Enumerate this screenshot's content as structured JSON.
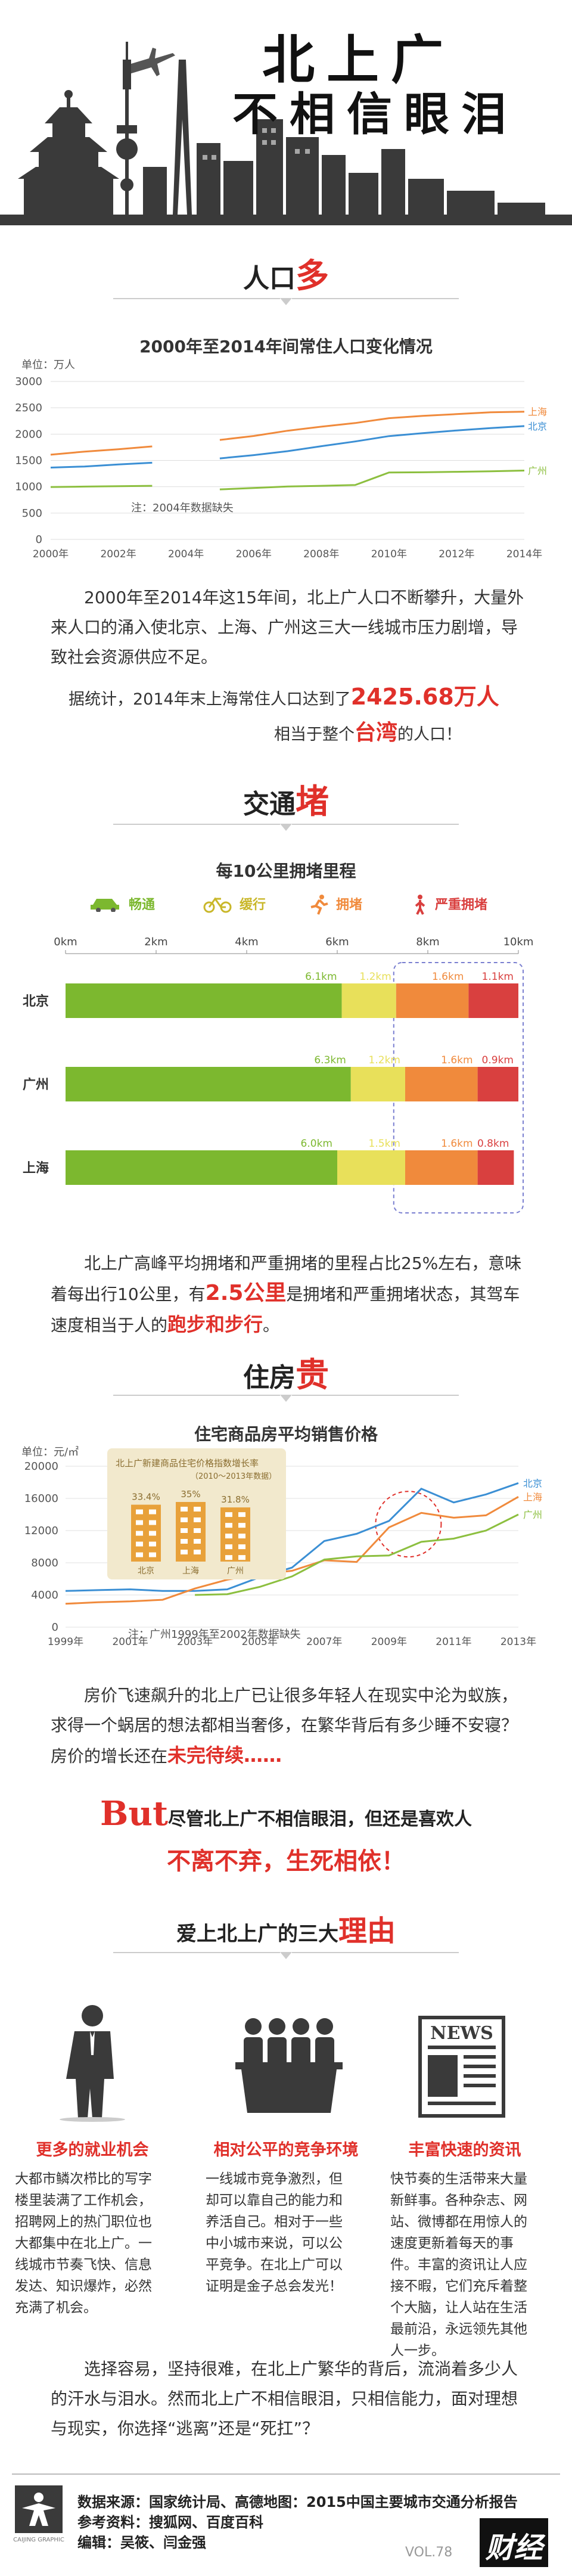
{
  "header": {
    "title_line1": "北上广",
    "title_line2": "不相信眼泪"
  },
  "population": {
    "section_prefix": "人口",
    "section_highlight": "多",
    "chart_title": "2000年至2014年间常住人口变化情况",
    "unit_label": "单位：万人",
    "note": "注：2004年数据缺失",
    "paragraph1": "2000年至2014年这15年间，北上广人口不断攀升，大量外来人口的涌入使北京、上海、广州这三大一线城市压力剧增，导致社会资源供应不足。",
    "para2_prefix": "据统计，2014年末上海常住人口达到了",
    "para2_number": "2425.68万人",
    "para3_prefix": "相当于整个",
    "para3_highlight": "台湾",
    "para3_suffix": "的人口！"
  },
  "traffic": {
    "section_prefix": "交通",
    "section_highlight": "堵",
    "chart_title": "每10公里拥堵里程",
    "legend": [
      {
        "label": "畅通",
        "color": "#7cb82f",
        "icon": "car-icon"
      },
      {
        "label": "缓行",
        "color": "#d6c92a",
        "icon": "bicycle-icon"
      },
      {
        "label": "拥堵",
        "color": "#f08a3c",
        "icon": "running-icon"
      },
      {
        "label": "严重拥堵",
        "color": "#d9403f",
        "icon": "walking-icon"
      }
    ],
    "paragraph_prefix": "北上广高峰平均拥堵和严重拥堵的里程占比25%左右，意味着每出行10公里，有",
    "paragraph_number": "2.5公里",
    "paragraph_mid": "是拥堵和严重拥堵状态，其驾车速度相当于人的",
    "paragraph_highlight": "跑步和步行",
    "paragraph_end": "。"
  },
  "housing": {
    "section_prefix": "住房",
    "section_highlight": "贵",
    "chart_title": "住宅商品房平均销售价格",
    "unit_label": "单位：元/㎡",
    "inset_title": "北上广新建商品住宅价格指数增长率",
    "inset_subtitle": "（2010～2013年数据）",
    "inset_values": [
      "33.4%",
      "35%",
      "31.8%"
    ],
    "inset_labels": [
      "北京",
      "上海",
      "广州"
    ],
    "note": "注：广州1999年至2002年数据缺失",
    "paragraph_prefix": "房价飞速飙升的北上广已让很多年轻人在现实中沦为蚁族，求得一个蜗居的想法都相当奢侈，在繁华背后有多少睡不安寝？房价的增长还在",
    "paragraph_highlight": "未完待续……"
  },
  "but": {
    "big": "But",
    "line1": "尽管北上广不相信眼泪，但还是喜欢人",
    "line2": "不离不弃，生死相依！"
  },
  "reasons": {
    "section_prefix": "爱上北上广的三大",
    "section_highlight": "理由",
    "items": [
      {
        "title": "更多的就业机会",
        "text": "大都市鳞次栉比的写字楼里装满了工作机会，招聘网上的热门职位也大都集中在北上广。一线城市节奏飞快、信息发达、知识爆炸，必然充满了机会。",
        "icon": "businessman-icon"
      },
      {
        "title": "相对公平的竞争环境",
        "text": "一线城市竞争激烈，但却可以靠自己的能力和养活自己。相对于一些中小城市来说，可以公平竞争。在北上广可以证明是金子总会发光！",
        "icon": "meeting-icon"
      },
      {
        "title": "丰富快速的资讯",
        "text": "快节奏的生活带来大量新鲜事。各种杂志、网站、微博都在用惊人的速度更新着每天的事件。丰富的资讯让人应接不暇，它们充斥着整个大脑，让人站在生活最前沿，永远领先其他人一步。",
        "icon": "newspaper-icon"
      }
    ],
    "news_label": "NEWS"
  },
  "closing": {
    "paragraph": "选择容易，坚持很难，在北上广繁华的背后，流淌着多少人的汗水与泪水。然而北上广不相信眼泪，只相信能力，面对理想与现实，你选择“逃离”还是“死扛”？"
  },
  "footer": {
    "source": "数据来源：国家统计局、高德地图：2015中国主要城市交通分析报告",
    "reference": "参考资料：搜狐网、百度百科",
    "editor": "编辑：吴筱、闫金强",
    "brand": "财经",
    "vol": "VOL.78",
    "logo_caption": "CAIJING GRAPHIC"
  },
  "chart_data": [
    {
      "type": "line",
      "title": "2000年至2014年间常住人口变化情况",
      "ylabel": "单位：万人",
      "x": [
        2000,
        2001,
        2002,
        2003,
        2004,
        2005,
        2006,
        2007,
        2008,
        2009,
        2010,
        2011,
        2012,
        2013,
        2014
      ],
      "x_ticks": [
        "2000年",
        "2002年",
        "2004年",
        "2006年",
        "2008年",
        "2010年",
        "2012年",
        "2014年"
      ],
      "ylim": [
        0,
        3000
      ],
      "y_ticks": [
        0,
        500,
        1000,
        1500,
        2000,
        2500,
        3000
      ],
      "series": [
        {
          "name": "上海",
          "color": "#f08a3c",
          "values": [
            1609,
            1668,
            1713,
            1766,
            null,
            1890,
            1964,
            2064,
            2141,
            2210,
            2303,
            2347,
            2380,
            2415,
            2426
          ]
        },
        {
          "name": "北京",
          "color": "#3b8fd4",
          "values": [
            1364,
            1385,
            1423,
            1456,
            null,
            1538,
            1601,
            1676,
            1771,
            1860,
            1962,
            2019,
            2069,
            2115,
            2152
          ]
        },
        {
          "name": "广州",
          "color": "#8cbf3f",
          "values": [
            995,
            1003,
            1010,
            1018,
            null,
            950,
            976,
            1004,
            1018,
            1033,
            1271,
            1275,
            1284,
            1293,
            1308
          ]
        }
      ]
    },
    {
      "type": "bar",
      "stacked": true,
      "orientation": "horizontal",
      "title": "每10公里拥堵里程",
      "x_ticks": [
        "0km",
        "2km",
        "4km",
        "6km",
        "8km",
        "10km"
      ],
      "xlim": [
        0,
        10
      ],
      "categories": [
        "北京",
        "广州",
        "上海"
      ],
      "series": [
        {
          "name": "畅通",
          "color": "#7cb82f",
          "values": [
            6.1,
            6.3,
            6.0
          ],
          "labels": [
            "6.1km",
            "6.3km",
            "6.0km"
          ]
        },
        {
          "name": "缓行",
          "color": "#e8e05a",
          "values": [
            1.2,
            1.2,
            1.5
          ],
          "labels": [
            "1.2km",
            "1.2km",
            "1.5km"
          ]
        },
        {
          "name": "拥堵",
          "color": "#f08a3c",
          "values": [
            1.6,
            1.6,
            1.6
          ],
          "labels": [
            "1.6km",
            "1.6km",
            "1.6km"
          ]
        },
        {
          "name": "严重拥堵",
          "color": "#d9403f",
          "values": [
            1.1,
            0.9,
            0.8
          ],
          "labels": [
            "1.1km",
            "0.9km",
            "0.8km"
          ]
        }
      ]
    },
    {
      "type": "line",
      "title": "住宅商品房平均销售价格",
      "ylabel": "单位：元/㎡",
      "x": [
        1999,
        2000,
        2001,
        2002,
        2003,
        2004,
        2005,
        2006,
        2007,
        2008,
        2009,
        2010,
        2011,
        2012,
        2013
      ],
      "x_ticks": [
        "1999年",
        "2001年",
        "2003年",
        "2005年",
        "2007年",
        "2009年",
        "2011年",
        "2013年"
      ],
      "ylim": [
        0,
        20000
      ],
      "y_ticks": [
        0,
        4000,
        8000,
        12000,
        16000,
        20000
      ],
      "series": [
        {
          "name": "北京",
          "color": "#3b8fd4",
          "values": [
            4500,
            4600,
            4700,
            4500,
            4500,
            4700,
            6200,
            7400,
            10700,
            11600,
            13200,
            17200,
            15500,
            16500,
            17900
          ]
        },
        {
          "name": "上海",
          "color": "#f08a3c",
          "values": [
            2900,
            3100,
            3200,
            3400,
            4800,
            5900,
            6600,
            7000,
            8300,
            8100,
            12400,
            14200,
            13600,
            13900,
            16200
          ]
        },
        {
          "name": "广州",
          "color": "#8cbf3f",
          "values": [
            null,
            null,
            null,
            null,
            4000,
            4100,
            5000,
            6300,
            8400,
            8800,
            8900,
            10600,
            11000,
            12000,
            14000
          ]
        }
      ]
    },
    {
      "type": "bar",
      "title": "北上广新建商品住宅价格指数增长率",
      "categories": [
        "北京",
        "上海",
        "广州"
      ],
      "values": [
        33.4,
        35,
        31.8
      ],
      "labels": [
        "33.4%",
        "35%",
        "31.8%"
      ]
    }
  ]
}
